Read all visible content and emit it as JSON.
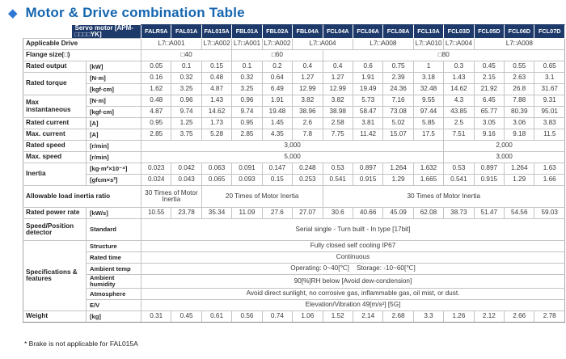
{
  "title": "Motor & Drive combination Table",
  "footnote": "* Brake is not applicable for FAL015A",
  "colors": {
    "header_bg": "#1e3a6b",
    "title_text": "#1566b0",
    "diamond_accent": "#2e77d4",
    "grid_line": "#c4c4c4"
  },
  "table": {
    "header": {
      "label": "Servo motor [APM-□□□□YK]",
      "models": [
        "FALR5A",
        "FAL01A",
        "FAL015A",
        "FBL01A",
        "FBL02A",
        "FBL04A",
        "FCL04A",
        "FCL06A",
        "FCL08A",
        "FCL10A",
        "FCL03D",
        "FCL05D",
        "FCL06D",
        "FCL07D"
      ]
    },
    "rows": [
      {
        "id": "applicable-drive",
        "label": "Applicable Drive",
        "label_colspan": 2,
        "cells": [
          {
            "t": "L7□A001",
            "s": 2
          },
          {
            "t": "L7□A002",
            "s": 1
          },
          {
            "t": "L7□A001",
            "s": 1
          },
          {
            "t": "L7□A002",
            "s": 1
          },
          {
            "t": "L7□A004",
            "s": 2
          },
          {
            "t": "L7□A008",
            "s": 2
          },
          {
            "t": "L7□A010",
            "s": 1
          },
          {
            "t": "L7□A004",
            "s": 1
          },
          {
            "t": "L7□A008",
            "s": 3
          }
        ]
      },
      {
        "id": "flange-size",
        "label": "Flange size(□)",
        "label_colspan": 2,
        "cells": [
          {
            "t": "□40",
            "s": 3
          },
          {
            "t": "□60",
            "s": 3
          },
          {
            "t": "□80",
            "s": 8
          }
        ]
      },
      {
        "id": "rated-output",
        "label": "Rated output",
        "unit": "[kW]",
        "values": [
          "0.05",
          "0.1",
          "0.15",
          "0.1",
          "0.2",
          "0.4",
          "0.4",
          "0.6",
          "0.75",
          "1",
          "0.3",
          "0.45",
          "0.55",
          "0.65"
        ]
      },
      {
        "id": "rated-torque-nm",
        "label": "Rated torque",
        "label_rowspan": 2,
        "unit": "[N·m]",
        "values": [
          "0.16",
          "0.32",
          "0.48",
          "0.32",
          "0.64",
          "1.27",
          "1.27",
          "1.91",
          "2.39",
          "3.18",
          "1.43",
          "2.15",
          "2.63",
          "3.1"
        ]
      },
      {
        "id": "rated-torque-kgfcm",
        "unit": "[kgf·cm]",
        "values": [
          "1.62",
          "3.25",
          "4.87",
          "3.25",
          "6.49",
          "12.99",
          "12.99",
          "19.49",
          "24.36",
          "32.48",
          "14.62",
          "21.92",
          "26.8",
          "31.67"
        ]
      },
      {
        "id": "max-instantaneous-nm",
        "label": "Max instantaneous",
        "label_rowspan": 2,
        "unit": "[N·m]",
        "values": [
          "0.48",
          "0.96",
          "1.43",
          "0.96",
          "1.91",
          "3.82",
          "3.82",
          "5.73",
          "7.16",
          "9.55",
          "4.3",
          "6.45",
          "7.88",
          "9.31"
        ]
      },
      {
        "id": "max-instantaneous-kgfcm",
        "unit": "[kgf·cm]",
        "values": [
          "4.87",
          "9.74",
          "14.62",
          "9.74",
          "19.48",
          "38.96",
          "38.98",
          "58.47",
          "73.08",
          "97.44",
          "43.85",
          "65.77",
          "80.39",
          "95.01"
        ]
      },
      {
        "id": "rated-current",
        "label": "Rated current",
        "unit": "[A]",
        "values": [
          "0.95",
          "1.25",
          "1.73",
          "0.95",
          "1.45",
          "2.6",
          "2.58",
          "3.81",
          "5.02",
          "5.85",
          "2.5",
          "3.05",
          "3.06",
          "3.83"
        ]
      },
      {
        "id": "max-current",
        "label": "Max. current",
        "unit": "[A]",
        "values": [
          "2.85",
          "3.75",
          "5.28",
          "2.85",
          "4.35",
          "7.8",
          "7.75",
          "11.42",
          "15.07",
          "17.5",
          "7.51",
          "9.16",
          "9.18",
          "11.5"
        ]
      },
      {
        "id": "rated-speed",
        "label": "Rated speed",
        "unit": "[r/min]",
        "cells": [
          {
            "t": "3,000",
            "s": 10
          },
          {
            "t": "2,000",
            "s": 4
          }
        ]
      },
      {
        "id": "max-speed",
        "label": "Max. speed",
        "unit": "[r/min]",
        "cells": [
          {
            "t": "5,000",
            "s": 10
          },
          {
            "t": "3,000",
            "s": 4
          }
        ]
      },
      {
        "id": "inertia-kgm2",
        "label": "Inertia",
        "label_rowspan": 2,
        "unit": "[kg·m²×10⁻⁴]",
        "values": [
          "0.023",
          "0.042",
          "0.063",
          "0.091",
          "0.147",
          "0.248",
          "0.53",
          "0.897",
          "1.264",
          "1.632",
          "0.53",
          "0.897",
          "1.264",
          "1.63"
        ]
      },
      {
        "id": "inertia-gfcms2",
        "unit": "[gfcm×s²]",
        "values": [
          "0.024",
          "0.043",
          "0.065",
          "0.093",
          "0.15",
          "0.253",
          "0.541",
          "0.915",
          "1.29",
          "1.665",
          "0.541",
          "0.915",
          "1.29",
          "1.66"
        ]
      },
      {
        "id": "allowable-load-inertia-ratio",
        "label": "Allowable load inertia ratio",
        "label_colspan": 2,
        "cls": "tall sep-top",
        "cells": [
          {
            "t": "30 Times of Motor Inertia",
            "s": 2
          },
          {
            "t": "20 Times of Motor Inertia",
            "s": 4
          },
          {
            "t": "30 Times of Motor Inertia",
            "s": 8
          }
        ]
      },
      {
        "id": "rated-power-rate",
        "label": "Rated power rate",
        "unit": "[kW/s]",
        "values": [
          "10.55",
          "23.78",
          "35.34",
          "11.09",
          "27.6",
          "27.07",
          "30.6",
          "40.66",
          "45.09",
          "62.08",
          "38.73",
          "51.47",
          "54.56",
          "59.03"
        ]
      },
      {
        "id": "speed-position-detector",
        "label": "Speed/Position detector",
        "unit": "Standard",
        "cls": "tall sep-top",
        "cells": [
          {
            "t": "Serial single - Turn built - In type [17bit]",
            "s": 14
          }
        ]
      },
      {
        "id": "spec-structure",
        "label": "Specifications & features",
        "label_rowspan": 6,
        "unit": "Structure",
        "cls": "sep-top",
        "cells": [
          {
            "t": "Fully closed self cooling IP67",
            "s": 14
          }
        ]
      },
      {
        "id": "spec-rated-time",
        "unit": "Rated time",
        "cells": [
          {
            "t": "Continuous",
            "s": 14
          }
        ]
      },
      {
        "id": "spec-ambient-temp",
        "unit": "Ambient temp",
        "cells": [
          {
            "t": "Operating: 0~40[℃]    Storage: -10~60[℃]",
            "s": 14
          }
        ]
      },
      {
        "id": "spec-ambient-humidity",
        "unit": "Ambient humidity",
        "cells": [
          {
            "t": "90[%]RH below [Avoid dew-condension]",
            "s": 14
          }
        ]
      },
      {
        "id": "spec-atmosphere",
        "unit": "Atmosphere",
        "cells": [
          {
            "t": "Avoid direct sunlight, no corrosive gas, inflammable gas, oil mist, or dust.",
            "s": 14
          }
        ]
      },
      {
        "id": "spec-ev",
        "unit": "E/V",
        "cells": [
          {
            "t": "Elevation/Vibration 49[m/s²] [5G]",
            "s": 14
          }
        ]
      },
      {
        "id": "weight",
        "label": "Weight",
        "unit": "[kg]",
        "cls": "sep-top",
        "values": [
          "0.31",
          "0.45",
          "0.61",
          "0.56",
          "0.74",
          "1.06",
          "1.52",
          "2.14",
          "2.68",
          "3.3",
          "1.26",
          "2.12",
          "2.66",
          "2.78"
        ]
      }
    ]
  }
}
